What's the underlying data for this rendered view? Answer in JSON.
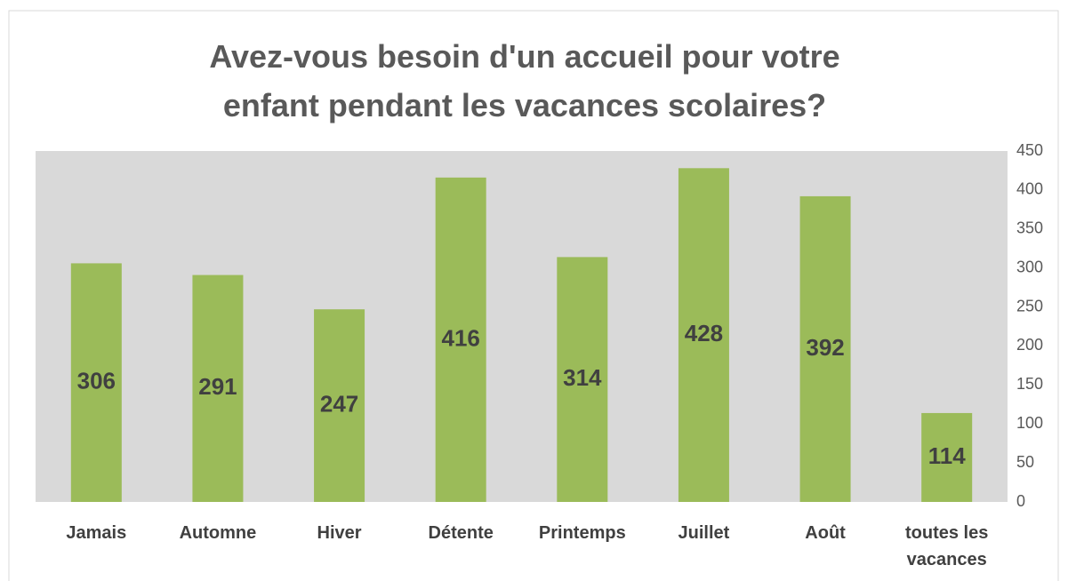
{
  "chart_data": {
    "type": "bar",
    "title": "Avez-vous besoin d'un accueil pour votre enfant pendant les vacances scolaires?",
    "categories": [
      "Jamais",
      "Automne",
      "Hiver",
      "Détente",
      "Printemps",
      "Juillet",
      "Août",
      "toutes les vacances"
    ],
    "values": [
      306,
      291,
      247,
      416,
      314,
      428,
      392,
      114
    ],
    "color": "#9bbb59",
    "ylim": [
      0,
      450
    ],
    "yticks": [
      0,
      50,
      100,
      150,
      200,
      250,
      300,
      350,
      400,
      450
    ],
    "y_axis_side": "right",
    "grid": false
  }
}
